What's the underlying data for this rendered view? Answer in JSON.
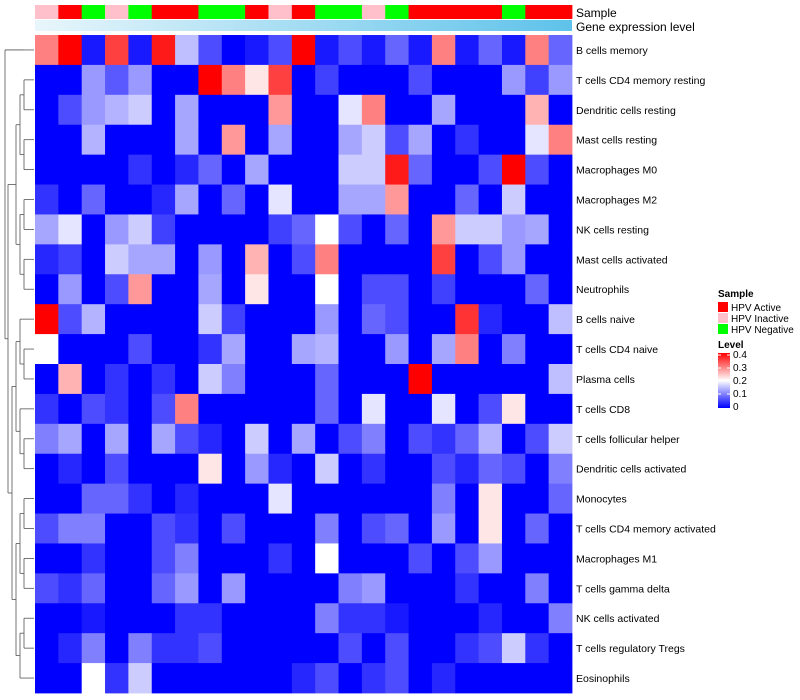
{
  "chart_data": {
    "type": "heatmap",
    "rows": [
      "B cells memory",
      "T cells CD4 memory resting",
      "Dendritic cells resting",
      "Mast cells resting",
      "Macrophages M0",
      "Macrophages M2",
      "NK cells resting",
      "Mast cells activated",
      "Neutrophils",
      "B cells naive",
      "T cells CD4 naive",
      "Plasma cells",
      "T cells CD8",
      "T cells follicular helper",
      "Dendritic cells activated",
      "Monocytes",
      "T cells CD4 memory activated",
      "Macrophages M1",
      "T cells gamma delta",
      "NK cells activated",
      "T cells regulatory  Tregs",
      "Eosinophils"
    ],
    "n_columns": 23,
    "values": [
      [
        0.3,
        0.4,
        0.02,
        0.35,
        0.02,
        0.38,
        0.15,
        0.06,
        0.0,
        0.02,
        0.06,
        0.4,
        0.02,
        0.06,
        0.02,
        0.08,
        0.02,
        0.3,
        0.02,
        0.08,
        0.02,
        0.3,
        0.08
      ],
      [
        0.0,
        0.0,
        0.12,
        0.07,
        0.12,
        0.0,
        0.0,
        0.4,
        0.3,
        0.22,
        0.35,
        0.0,
        0.05,
        0.0,
        0.0,
        0.0,
        0.06,
        0.0,
        0.0,
        0.0,
        0.12,
        0.05,
        0.12
      ],
      [
        0.0,
        0.06,
        0.12,
        0.14,
        0.16,
        0.0,
        0.13,
        0.0,
        0.0,
        0.0,
        0.28,
        0.0,
        0.0,
        0.18,
        0.3,
        0.0,
        0.0,
        0.13,
        0.0,
        0.0,
        0.0,
        0.26,
        0.0
      ],
      [
        0.0,
        0.0,
        0.14,
        0.0,
        0.0,
        0.0,
        0.13,
        0.0,
        0.28,
        0.0,
        0.13,
        0.0,
        0.0,
        0.13,
        0.16,
        0.06,
        0.13,
        0.0,
        0.04,
        0.0,
        0.0,
        0.18,
        0.3
      ],
      [
        0.0,
        0.0,
        0.0,
        0.0,
        0.04,
        0.0,
        0.03,
        0.08,
        0.0,
        0.13,
        0.0,
        0.0,
        0.0,
        0.16,
        0.16,
        0.38,
        0.08,
        0.0,
        0.0,
        0.06,
        0.4,
        0.06,
        0.0
      ],
      [
        0.04,
        0.0,
        0.08,
        0.0,
        0.0,
        0.03,
        0.13,
        0.0,
        0.08,
        0.0,
        0.18,
        0.0,
        0.0,
        0.13,
        0.13,
        0.28,
        0.0,
        0.0,
        0.08,
        0.0,
        0.16,
        0.0,
        0.0
      ],
      [
        0.13,
        0.18,
        0.0,
        0.12,
        0.16,
        0.05,
        0.0,
        0.0,
        0.0,
        0.0,
        0.05,
        0.08,
        0.2,
        0.06,
        0.0,
        0.08,
        0.0,
        0.28,
        0.16,
        0.16,
        0.12,
        0.13,
        0.0
      ],
      [
        0.03,
        0.05,
        0.0,
        0.16,
        0.13,
        0.13,
        0.0,
        0.12,
        0.0,
        0.26,
        0.0,
        0.06,
        0.3,
        0.0,
        0.0,
        0.0,
        0.0,
        0.35,
        0.0,
        0.06,
        0.12,
        0.0,
        0.0
      ],
      [
        0.0,
        0.12,
        0.0,
        0.06,
        0.28,
        0.0,
        0.0,
        0.13,
        0.0,
        0.22,
        0.0,
        0.0,
        0.2,
        0.0,
        0.06,
        0.06,
        0.0,
        0.05,
        0.0,
        0.0,
        0.0,
        0.08,
        0.0
      ],
      [
        0.4,
        0.06,
        0.14,
        0.0,
        0.0,
        0.0,
        0.0,
        0.16,
        0.05,
        0.0,
        0.0,
        0.0,
        0.12,
        0.0,
        0.08,
        0.06,
        0.0,
        0.0,
        0.36,
        0.03,
        0.0,
        0.0,
        0.15
      ],
      [
        0.2,
        0.0,
        0.0,
        0.0,
        0.06,
        0.0,
        0.0,
        0.04,
        0.13,
        0.0,
        0.0,
        0.13,
        0.14,
        0.0,
        0.0,
        0.12,
        0.0,
        0.13,
        0.3,
        0.0,
        0.1,
        0.0,
        0.0
      ],
      [
        0.0,
        0.26,
        0.0,
        0.04,
        0.0,
        0.04,
        0.0,
        0.16,
        0.1,
        0.0,
        0.0,
        0.0,
        0.08,
        0.0,
        0.0,
        0.0,
        0.4,
        0.0,
        0.0,
        0.0,
        0.0,
        0.0,
        0.15
      ],
      [
        0.04,
        0.0,
        0.06,
        0.04,
        0.0,
        0.06,
        0.3,
        0.0,
        0.0,
        0.0,
        0.0,
        0.0,
        0.08,
        0.0,
        0.18,
        0.0,
        0.0,
        0.18,
        0.0,
        0.06,
        0.22,
        0.0,
        0.0
      ],
      [
        0.1,
        0.13,
        0.0,
        0.13,
        0.0,
        0.13,
        0.06,
        0.03,
        0.0,
        0.16,
        0.0,
        0.13,
        0.0,
        0.06,
        0.1,
        0.0,
        0.06,
        0.04,
        0.08,
        0.14,
        0.0,
        0.06,
        0.16
      ],
      [
        0.0,
        0.03,
        0.0,
        0.06,
        0.0,
        0.0,
        0.0,
        0.22,
        0.0,
        0.12,
        0.03,
        0.0,
        0.16,
        0.0,
        0.04,
        0.0,
        0.0,
        0.06,
        0.03,
        0.08,
        0.06,
        0.0,
        0.1
      ],
      [
        0.0,
        0.0,
        0.08,
        0.08,
        0.04,
        0.0,
        0.03,
        0.0,
        0.0,
        0.0,
        0.18,
        0.0,
        0.0,
        0.0,
        0.0,
        0.0,
        0.0,
        0.1,
        0.0,
        0.22,
        0.0,
        0.0,
        0.08
      ],
      [
        0.06,
        0.1,
        0.1,
        0.0,
        0.0,
        0.06,
        0.04,
        0.0,
        0.06,
        0.0,
        0.0,
        0.0,
        0.1,
        0.0,
        0.06,
        0.08,
        0.0,
        0.12,
        0.0,
        0.22,
        0.0,
        0.08,
        0.0
      ],
      [
        0.0,
        0.0,
        0.04,
        0.0,
        0.0,
        0.06,
        0.1,
        0.0,
        0.0,
        0.0,
        0.04,
        0.0,
        0.2,
        0.0,
        0.0,
        0.0,
        0.06,
        0.0,
        0.06,
        0.12,
        0.0,
        0.0,
        0.0
      ],
      [
        0.06,
        0.04,
        0.08,
        0.0,
        0.0,
        0.08,
        0.12,
        0.0,
        0.12,
        0.0,
        0.0,
        0.0,
        0.0,
        0.1,
        0.12,
        0.0,
        0.0,
        0.0,
        0.04,
        0.0,
        0.0,
        0.1,
        0.0
      ],
      [
        0.0,
        0.0,
        0.02,
        0.0,
        0.0,
        0.0,
        0.04,
        0.04,
        0.0,
        0.0,
        0.0,
        0.0,
        0.1,
        0.04,
        0.04,
        0.02,
        0.0,
        0.0,
        0.0,
        0.03,
        0.0,
        0.0,
        0.1
      ],
      [
        0.0,
        0.03,
        0.1,
        0.0,
        0.1,
        0.04,
        0.04,
        0.06,
        0.0,
        0.0,
        0.0,
        0.0,
        0.0,
        0.06,
        0.0,
        0.06,
        0.0,
        0.0,
        0.04,
        0.06,
        0.16,
        0.04,
        0.0
      ],
      [
        0.0,
        0.0,
        0.2,
        0.04,
        0.16,
        0.0,
        0.0,
        0.0,
        0.0,
        0.0,
        0.0,
        0.03,
        0.06,
        0.0,
        0.04,
        0.06,
        0.0,
        0.03,
        0.0,
        0.0,
        0.0,
        0.0,
        0.0
      ]
    ],
    "sample_annotation": [
      "HPV Inactive",
      "HPV Active",
      "HPV Negative",
      "HPV Inactive",
      "HPV Negative",
      "HPV Active",
      "HPV Active",
      "HPV Negative",
      "HPV Negative",
      "HPV Active",
      "HPV Inactive",
      "HPV Active",
      "HPV Negative",
      "HPV Negative",
      "HPV Inactive",
      "HPV Negative",
      "HPV Active",
      "HPV Active",
      "HPV Active",
      "HPV Active",
      "HPV Negative",
      "HPV Active",
      "HPV Active"
    ],
    "annotation_labels": {
      "sample": "Sample",
      "gene": "Gene expression level"
    },
    "legend": {
      "sample_title": "Sample",
      "sample_entries": [
        "HPV Active",
        "HPV Inactive",
        "HPV Negative"
      ],
      "level_title": "Level",
      "level_ticks": [
        "0.4",
        "0.3",
        "0.2",
        "0.1",
        "0"
      ],
      "level_range": [
        0,
        0.4
      ]
    },
    "colors": {
      "low": "#0000ff",
      "mid": "#ffffff",
      "high": "#ff0000",
      "hpv_active": "#ff0000",
      "hpv_inactive": "#ffc0cb",
      "hpv_negative": "#00ff00",
      "gene_bar_left": "#e8f6fb",
      "gene_bar_right": "#5ec2ea",
      "dendrogram": "#555555"
    }
  }
}
